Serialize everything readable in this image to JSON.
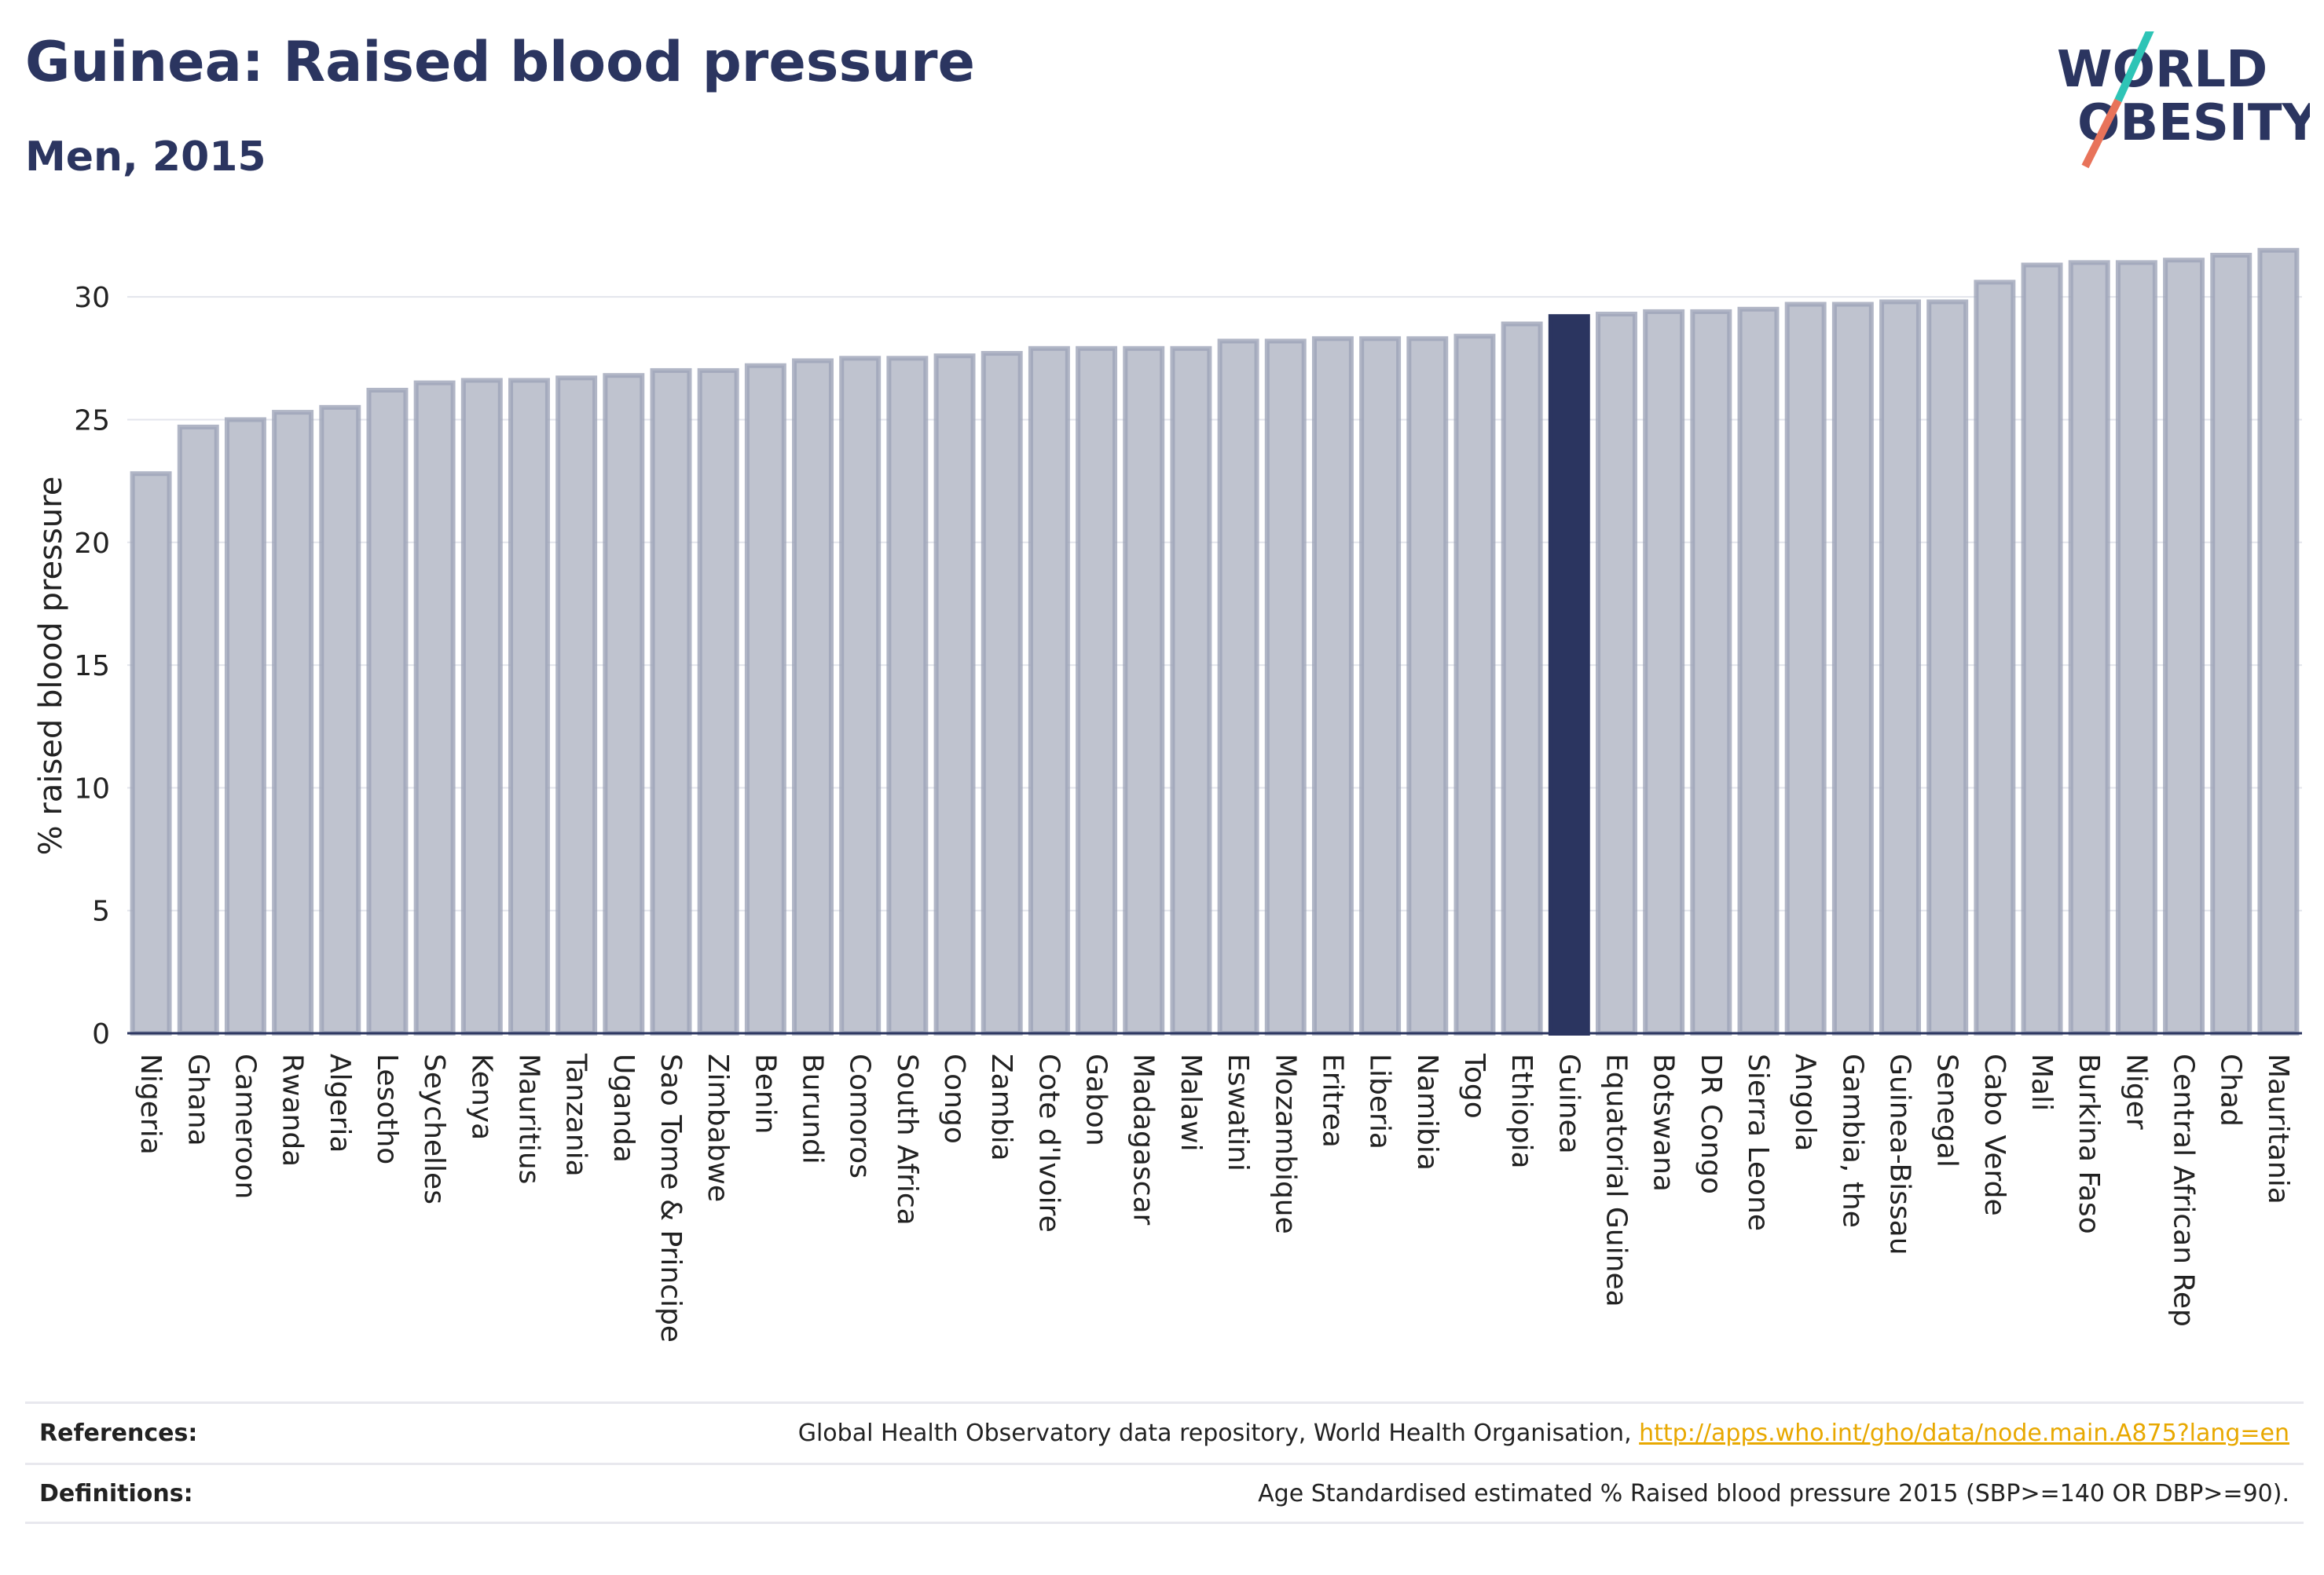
{
  "header": {
    "title": "Guinea: Raised blood pressure",
    "subtitle": "Men, 2015"
  },
  "logo": {
    "line1": "WORLD",
    "line2": "OBESITY",
    "colors": {
      "text": "#2b3560",
      "stroke_teal": "#2ec4b6",
      "stroke_coral": "#e8735a"
    }
  },
  "colors": {
    "bar_fill": "#bfc3cf",
    "bar_stroke": "#9ea4b8",
    "highlight_fill": "#2b3560",
    "axis": "#2b3560",
    "grid": "#e3e5ec",
    "tick_text": "#222222"
  },
  "chart_data": {
    "type": "bar",
    "ylabel": "% raised blood pressure",
    "xlabel": "",
    "ylim": [
      0,
      32.5
    ],
    "yticks": [
      0,
      5,
      10,
      15,
      20,
      25,
      30
    ],
    "grid": true,
    "highlight": "Guinea",
    "categories": [
      "Nigeria",
      "Ghana",
      "Cameroon",
      "Rwanda",
      "Algeria",
      "Lesotho",
      "Seychelles",
      "Kenya",
      "Mauritius",
      "Tanzania",
      "Uganda",
      "Sao Tome & Principe",
      "Zimbabwe",
      "Benin",
      "Burundi",
      "Comoros",
      "South Africa",
      "Congo",
      "Zambia",
      "Cote d'Ivoire",
      "Gabon",
      "Madagascar",
      "Malawi",
      "Eswatini",
      "Mozambique",
      "Eritrea",
      "Liberia",
      "Namibia",
      "Togo",
      "Ethiopia",
      "Guinea",
      "Equatorial Guinea",
      "Botswana",
      "DR Congo",
      "Sierra Leone",
      "Angola",
      "Gambia, the",
      "Guinea-Bissau",
      "Senegal",
      "Cabo Verde",
      "Mali",
      "Burkina Faso",
      "Niger",
      "Central African Rep",
      "Chad",
      "Mauritania"
    ],
    "values": [
      22.8,
      24.7,
      25.0,
      25.3,
      25.5,
      26.2,
      26.5,
      26.6,
      26.6,
      26.7,
      26.8,
      27.0,
      27.0,
      27.2,
      27.4,
      27.5,
      27.5,
      27.6,
      27.7,
      27.9,
      27.9,
      27.9,
      27.9,
      28.2,
      28.2,
      28.3,
      28.3,
      28.3,
      28.4,
      28.9,
      29.2,
      29.3,
      29.4,
      29.4,
      29.5,
      29.7,
      29.7,
      29.8,
      29.8,
      30.6,
      31.3,
      31.4,
      31.4,
      31.5,
      31.7,
      31.9
    ]
  },
  "footer": {
    "references_label": "References:",
    "references_text": "Global Health Observatory data repository, World Health Organisation, ",
    "references_link": "http://apps.who.int/gho/data/node.main.A875?lang=en",
    "definitions_label": "Definitions:",
    "definitions_text": "Age Standardised estimated % Raised blood pressure 2015 (SBP>=140 OR DBP>=90)."
  }
}
